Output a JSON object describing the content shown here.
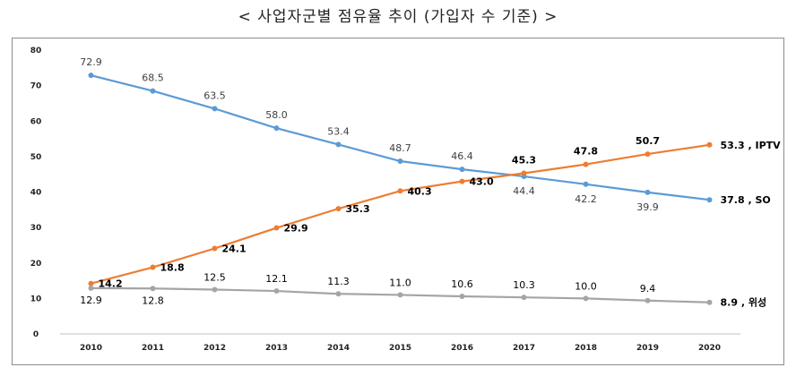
{
  "title": "< 사업자군별 점유율 추이 (가입자 수 기준) >",
  "chart_data": {
    "type": "line",
    "title": "< 사업자군별 점유율 추이 (가입자 수 기준) >",
    "xlabel": "",
    "ylabel": "",
    "ylim": [
      0,
      80
    ],
    "yticks": [
      0,
      10,
      20,
      30,
      40,
      50,
      60,
      70,
      80
    ],
    "grid": false,
    "categories": [
      "2010",
      "2011",
      "2012",
      "2013",
      "2014",
      "2015",
      "2016",
      "2017",
      "2018",
      "2019",
      "2020"
    ],
    "series": [
      {
        "name": "SO",
        "end_label": "37.8 , SO",
        "color": "#5b9bd5",
        "values": [
          72.9,
          68.5,
          63.5,
          58.0,
          53.4,
          48.7,
          46.4,
          44.4,
          42.2,
          39.9,
          37.8
        ],
        "labels": [
          "72.9",
          "68.5",
          "63.5",
          "58.0",
          "53.4",
          "48.7",
          "46.4",
          "44.4",
          "42.2",
          "39.9",
          ""
        ]
      },
      {
        "name": "IPTV",
        "end_label": "53.3 , IPTV",
        "color": "#ed7d31",
        "values": [
          14.2,
          18.8,
          24.1,
          29.9,
          35.3,
          40.3,
          43.0,
          45.3,
          47.8,
          50.7,
          53.3
        ],
        "labels": [
          "14.2",
          "18.8",
          "24.1",
          "29.9",
          "35.3",
          "40.3",
          "43.0",
          "45.3",
          "47.8",
          "50.7",
          ""
        ]
      },
      {
        "name": "위성",
        "end_label": "8.9 , 위성",
        "color": "#a5a5a5",
        "values": [
          12.9,
          12.8,
          12.5,
          12.1,
          11.3,
          11.0,
          10.6,
          10.3,
          10.0,
          9.4,
          8.9
        ],
        "labels": [
          "12.9",
          "12.8",
          "12.5",
          "12.1",
          "11.3",
          "11.0",
          "10.6",
          "10.3",
          "10.0",
          "9.4",
          ""
        ]
      }
    ]
  }
}
